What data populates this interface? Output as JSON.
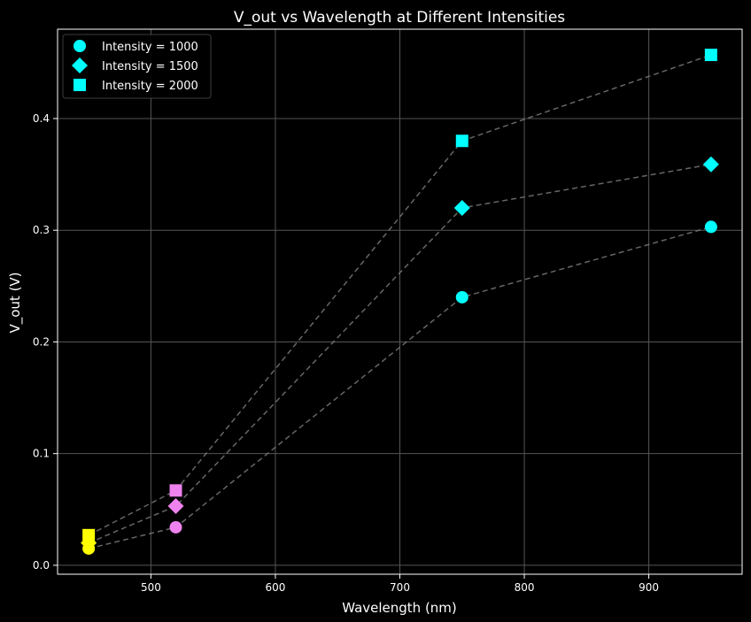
{
  "chart_data": {
    "type": "scatter",
    "title": "V_out vs Wavelength at Different Intensities",
    "xlabel": "Wavelength (nm)",
    "ylabel": "V_out (V)",
    "xlim": [
      425,
      975
    ],
    "ylim": [
      -0.008,
      0.48
    ],
    "xticks": [
      500,
      600,
      700,
      800,
      900
    ],
    "yticks": [
      0.0,
      0.1,
      0.2,
      0.3,
      0.4
    ],
    "xtick_labels": [
      "500",
      "600",
      "700",
      "800",
      "900"
    ],
    "ytick_labels": [
      "0.0",
      "0.1",
      "0.2",
      "0.3",
      "0.4"
    ],
    "grid": true,
    "legend_position": "upper-left",
    "x": [
      450,
      520,
      750,
      950
    ],
    "point_colors": [
      "#ffff00",
      "#ee82ee",
      "#00ffff",
      "#00ffff"
    ],
    "series": [
      {
        "name": "Intensity = 1000",
        "marker": "circle",
        "values": [
          0.015,
          0.034,
          0.24,
          0.303
        ]
      },
      {
        "name": "Intensity = 1500",
        "marker": "diamond",
        "values": [
          0.02,
          0.053,
          0.32,
          0.359
        ]
      },
      {
        "name": "Intensity = 2000",
        "marker": "square",
        "values": [
          0.027,
          0.067,
          0.38,
          0.457
        ]
      }
    ],
    "legend_color": "#00ffff",
    "line_color": "#808080",
    "background": "#000000",
    "grid_color": "#555555"
  }
}
